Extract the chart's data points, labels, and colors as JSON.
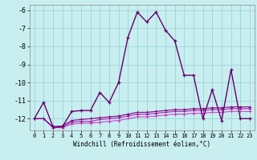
{
  "xlabel": "Windchill (Refroidissement éolien,°C)",
  "xlim": [
    -0.5,
    23.5
  ],
  "ylim": [
    -12.65,
    -5.7
  ],
  "yticks": [
    -12,
    -11,
    -10,
    -9,
    -8,
    -7,
    -6
  ],
  "xticks": [
    0,
    1,
    2,
    3,
    4,
    5,
    6,
    7,
    8,
    9,
    10,
    11,
    12,
    13,
    14,
    15,
    16,
    17,
    18,
    19,
    20,
    21,
    22,
    23
  ],
  "bg_color": "#c8eef0",
  "grid_color": "#a0d8dc",
  "line1_x": [
    0,
    1,
    2,
    3,
    4,
    5,
    6,
    7,
    8,
    9,
    10,
    11,
    12,
    13,
    14,
    15,
    16,
    17,
    18,
    19,
    20,
    21,
    22,
    23
  ],
  "line1_y": [
    -12.0,
    -11.1,
    -12.45,
    -12.45,
    -11.6,
    -11.55,
    -11.55,
    -10.55,
    -11.1,
    -10.0,
    -7.5,
    -6.1,
    -6.65,
    -6.1,
    -7.1,
    -7.7,
    -9.6,
    -9.6,
    -12.0,
    -10.4,
    -12.1,
    -9.3,
    -12.0,
    -12.0
  ],
  "line1_color": "#660066",
  "line2_x": [
    0,
    1,
    2,
    3,
    4,
    5,
    6,
    7,
    8,
    9,
    10,
    11,
    12,
    13,
    14,
    15,
    16,
    17,
    18,
    19,
    20,
    21,
    22,
    23
  ],
  "line2_y": [
    -12.0,
    -12.0,
    -12.5,
    -12.5,
    -12.3,
    -12.25,
    -12.25,
    -12.2,
    -12.15,
    -12.1,
    -12.0,
    -11.9,
    -11.9,
    -11.85,
    -11.8,
    -11.75,
    -11.75,
    -11.7,
    -11.7,
    -11.65,
    -11.65,
    -11.6,
    -11.6,
    -11.6
  ],
  "line2_color": "#cc44cc",
  "line3_x": [
    0,
    1,
    2,
    3,
    4,
    5,
    6,
    7,
    8,
    9,
    10,
    11,
    12,
    13,
    14,
    15,
    16,
    17,
    18,
    19,
    20,
    21,
    22,
    23
  ],
  "line3_y": [
    -12.0,
    -12.0,
    -12.5,
    -12.45,
    -12.2,
    -12.15,
    -12.15,
    -12.05,
    -12.0,
    -11.95,
    -11.85,
    -11.75,
    -11.75,
    -11.7,
    -11.65,
    -11.6,
    -11.6,
    -11.55,
    -11.55,
    -11.5,
    -11.5,
    -11.45,
    -11.45,
    -11.45
  ],
  "line3_color": "#aa22aa",
  "line4_x": [
    0,
    1,
    2,
    3,
    4,
    5,
    6,
    7,
    8,
    9,
    10,
    11,
    12,
    13,
    14,
    15,
    16,
    17,
    18,
    19,
    20,
    21,
    22,
    23
  ],
  "line4_y": [
    -12.0,
    -12.0,
    -12.45,
    -12.4,
    -12.1,
    -12.05,
    -12.0,
    -11.95,
    -11.9,
    -11.85,
    -11.75,
    -11.65,
    -11.65,
    -11.6,
    -11.55,
    -11.5,
    -11.5,
    -11.45,
    -11.45,
    -11.4,
    -11.4,
    -11.35,
    -11.35,
    -11.35
  ],
  "line4_color": "#880088"
}
